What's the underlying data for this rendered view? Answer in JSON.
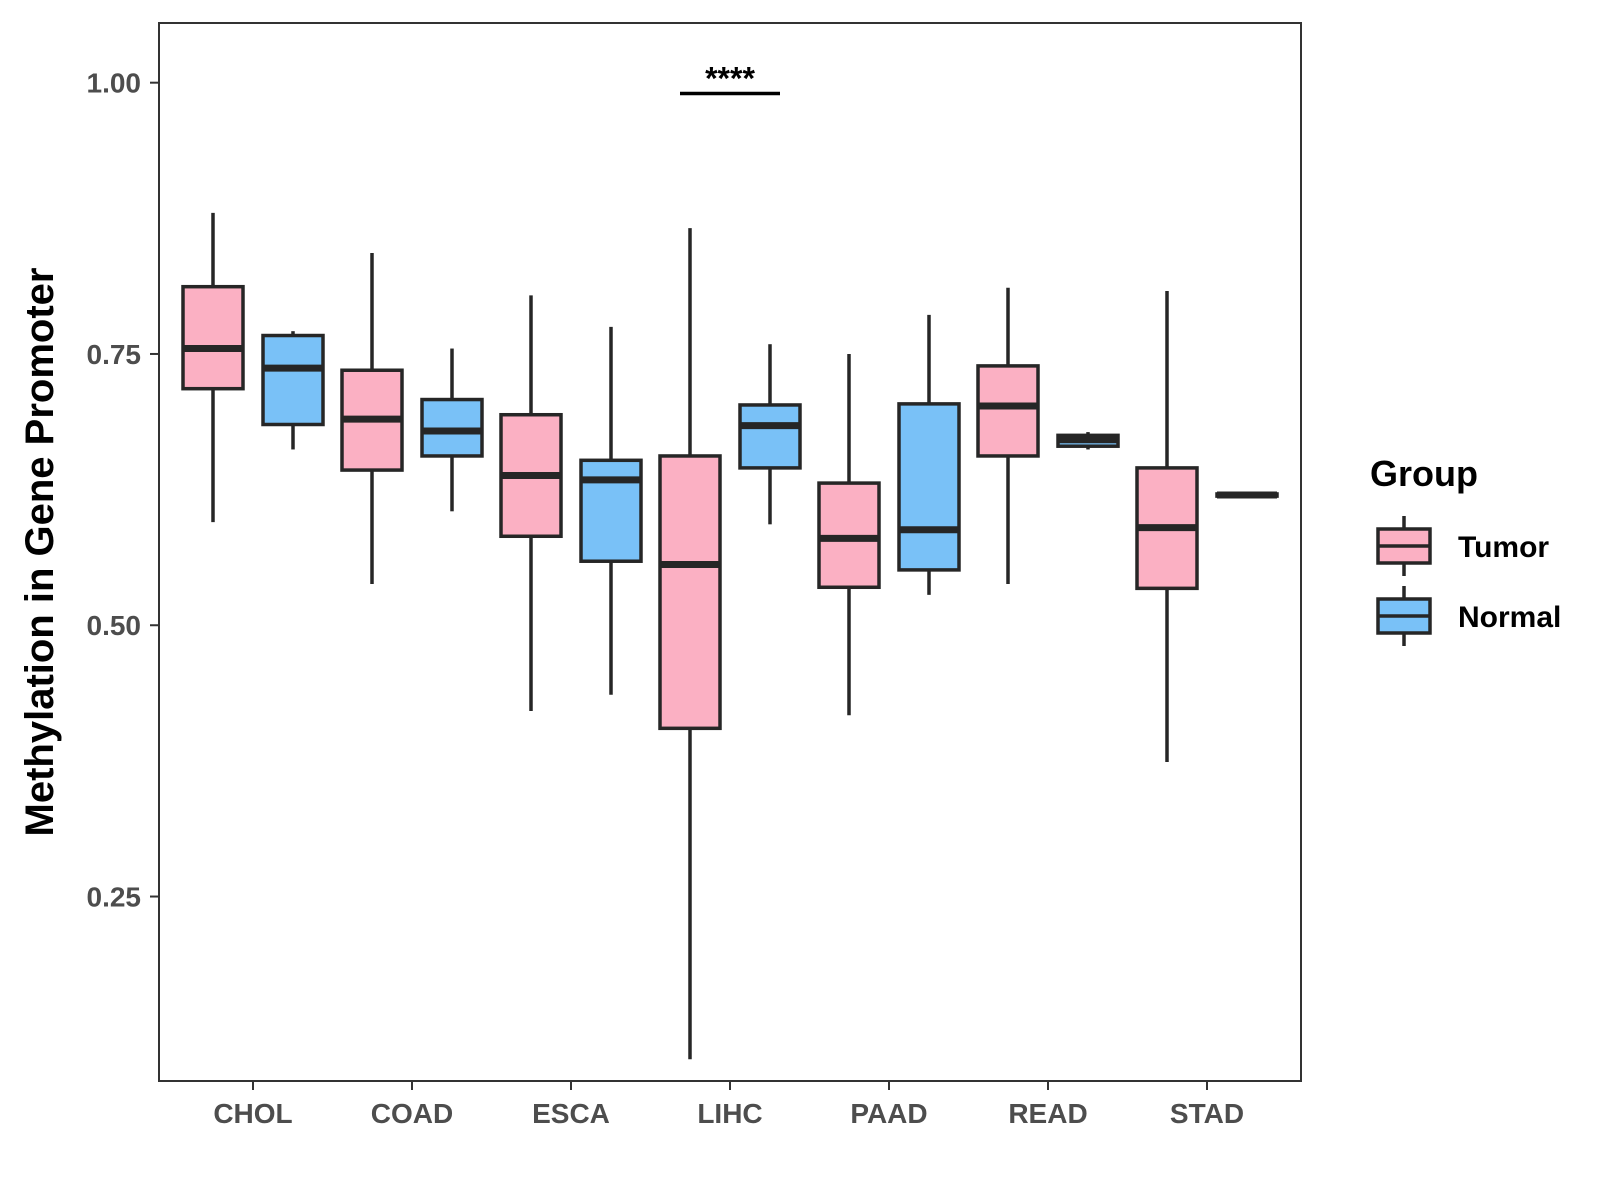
{
  "chart_data": {
    "type": "boxplot",
    "ylabel": "Methylation in Gene Promoter",
    "xlabel": "",
    "ylim": [
      0.08,
      1.055
    ],
    "yticks": [
      0.25,
      0.5,
      0.75,
      1.0
    ],
    "ytick_labels": [
      "0.25",
      "0.50",
      "0.75",
      "1.00"
    ],
    "categories": [
      "CHOL",
      "COAD",
      "ESCA",
      "LIHC",
      "PAAD",
      "READ",
      "STAD"
    ],
    "legend": {
      "title": "Group",
      "placement": "right",
      "entries": [
        {
          "name": "Tumor",
          "color": "#FBB0C3"
        },
        {
          "name": "Normal",
          "color": "#79C1F7"
        }
      ]
    },
    "series": [
      {
        "name": "Tumor",
        "color": "#FBB0C3",
        "boxes": [
          {
            "category": "CHOL",
            "min": 0.595,
            "q1": 0.718,
            "median": 0.755,
            "q3": 0.812,
            "max": 0.88
          },
          {
            "category": "COAD",
            "min": 0.538,
            "q1": 0.643,
            "median": 0.69,
            "q3": 0.735,
            "max": 0.843
          },
          {
            "category": "ESCA",
            "min": 0.421,
            "q1": 0.582,
            "median": 0.638,
            "q3": 0.694,
            "max": 0.804
          },
          {
            "category": "LIHC",
            "min": 0.1,
            "q1": 0.405,
            "median": 0.556,
            "q3": 0.656,
            "max": 0.866
          },
          {
            "category": "PAAD",
            "min": 0.417,
            "q1": 0.535,
            "median": 0.58,
            "q3": 0.631,
            "max": 0.75
          },
          {
            "category": "READ",
            "min": 0.538,
            "q1": 0.656,
            "median": 0.702,
            "q3": 0.739,
            "max": 0.811
          },
          {
            "category": "STAD",
            "min": 0.374,
            "q1": 0.534,
            "median": 0.59,
            "q3": 0.645,
            "max": 0.808
          }
        ]
      },
      {
        "name": "Normal",
        "color": "#79C1F7",
        "boxes": [
          {
            "category": "CHOL",
            "min": 0.662,
            "q1": 0.685,
            "median": 0.737,
            "q3": 0.767,
            "max": 0.771
          },
          {
            "category": "COAD",
            "min": 0.605,
            "q1": 0.656,
            "median": 0.679,
            "q3": 0.708,
            "max": 0.755
          },
          {
            "category": "ESCA",
            "min": 0.436,
            "q1": 0.559,
            "median": 0.634,
            "q3": 0.652,
            "max": 0.775
          },
          {
            "category": "LIHC",
            "min": 0.593,
            "q1": 0.645,
            "median": 0.684,
            "q3": 0.703,
            "max": 0.759
          },
          {
            "category": "PAAD",
            "min": 0.528,
            "q1": 0.551,
            "median": 0.588,
            "q3": 0.704,
            "max": 0.786
          },
          {
            "category": "READ",
            "min": 0.662,
            "q1": 0.665,
            "median": 0.671,
            "q3": 0.675,
            "max": 0.678
          },
          {
            "category": "STAD",
            "min": 0.619,
            "q1": 0.619,
            "median": 0.62,
            "q3": 0.621,
            "max": 0.621
          }
        ]
      }
    ],
    "annotations": [
      {
        "text": "****",
        "category": "LIHC",
        "y": 0.99
      }
    ]
  }
}
